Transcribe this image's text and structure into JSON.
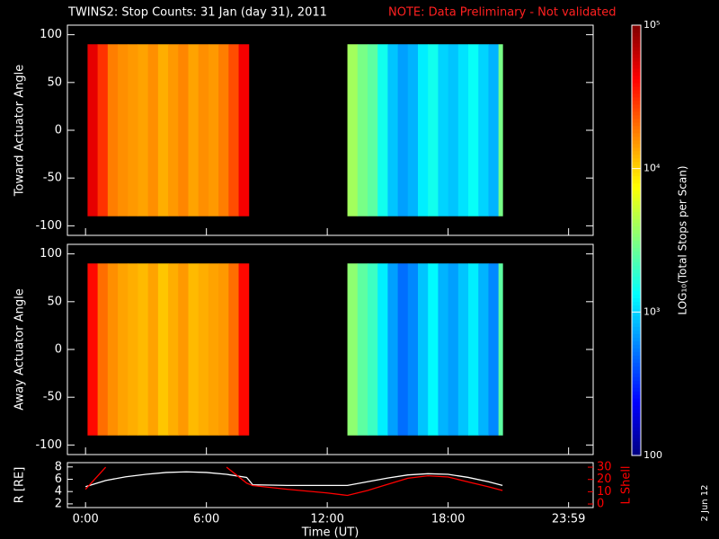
{
  "header": {
    "title": "TWINS2: Stop Counts: 31 Jan (day  31), 2011",
    "note": "NOTE: Data Preliminary - Not validated"
  },
  "footer_date": "2 Jun 12",
  "chart_data": [
    {
      "type": "heatmap",
      "y_label": "Toward Actuator Angle",
      "xlim": [
        -0.9,
        25.2
      ],
      "ylim": [
        -110,
        110
      ],
      "yticks": [
        -100,
        -50,
        0,
        50,
        100
      ],
      "angle_range": [
        -90,
        90
      ],
      "blocks": [
        {
          "bins": [
            0.1,
            0.6,
            1.1,
            1.6,
            2.1,
            2.6,
            3.1,
            3.6,
            4.1,
            4.6,
            5.1,
            5.6,
            6.1,
            6.6,
            7.1,
            7.6,
            8.1
          ],
          "values": [
            50000,
            30000,
            18000,
            16000,
            15000,
            14000,
            16000,
            13000,
            15000,
            17000,
            14000,
            16000,
            15000,
            18000,
            25000,
            45000
          ]
        },
        {
          "bins": [
            13.0,
            13.5,
            14.0,
            14.5,
            15.0,
            15.5,
            16.0,
            16.5,
            17.0,
            17.5,
            18.0,
            18.5,
            19.0,
            19.5,
            20.0,
            20.5,
            20.7
          ],
          "values": [
            4000,
            3000,
            2500,
            1500,
            900,
            700,
            800,
            1200,
            1500,
            1000,
            900,
            1100,
            1400,
            1000,
            800,
            3000
          ]
        }
      ],
      "colorbar": {
        "label": "LOG₁₀(Total Stops per Scan)",
        "scale": "log",
        "lim": [
          100,
          100000
        ],
        "ticks": [
          {
            "value": 100000,
            "label": "10⁵"
          },
          {
            "value": 10000,
            "label": "10⁴"
          },
          {
            "value": 1000,
            "label": "10³"
          },
          100
        ]
      }
    },
    {
      "type": "heatmap",
      "y_label": "Away Actuator Angle",
      "xlim": [
        -0.9,
        25.2
      ],
      "ylim": [
        -110,
        110
      ],
      "yticks": [
        -100,
        -50,
        0,
        50,
        100
      ],
      "angle_range": [
        -90,
        90
      ],
      "blocks": [
        {
          "bins": [
            0.1,
            0.6,
            1.1,
            1.6,
            2.1,
            2.6,
            3.1,
            3.6,
            4.1,
            4.6,
            5.1,
            5.6,
            6.1,
            6.6,
            7.1,
            7.6,
            8.1
          ],
          "values": [
            40000,
            20000,
            16000,
            14000,
            13000,
            12000,
            14000,
            11000,
            13000,
            15000,
            12000,
            13000,
            14000,
            15000,
            20000,
            40000
          ]
        },
        {
          "bins": [
            13.0,
            13.5,
            14.0,
            14.5,
            15.0,
            15.5,
            16.0,
            16.5,
            17.0,
            17.5,
            18.0,
            18.5,
            19.0,
            19.5,
            20.0,
            20.5,
            20.7
          ],
          "values": [
            3500,
            2500,
            2000,
            1200,
            700,
            500,
            600,
            900,
            1300,
            800,
            700,
            900,
            1200,
            800,
            600,
            2500
          ]
        }
      ]
    },
    {
      "type": "line",
      "x_label": "Time (UT)",
      "y_label": "R [RE]",
      "y2_label": "L Shell",
      "xlim": [
        -0.9,
        25.2
      ],
      "ylim": [
        1.4,
        8.7
      ],
      "y2lim": [
        -2.9,
        33.7
      ],
      "xticks": [
        {
          "value": 0,
          "label": "0:00"
        },
        {
          "value": 6,
          "label": "6:00"
        },
        {
          "value": 12,
          "label": "12:00"
        },
        {
          "value": 18,
          "label": "18:00"
        },
        {
          "value": 23.98,
          "label": "23:59"
        }
      ],
      "yticks": [
        2,
        4,
        6,
        8
      ],
      "y2ticks": [
        0,
        10,
        20,
        30
      ],
      "x": [
        0,
        1,
        2,
        3,
        4,
        5,
        6,
        7,
        8,
        8.3,
        10,
        12,
        13,
        14,
        15,
        16,
        17,
        18,
        19,
        20,
        20.7
      ],
      "series": [
        {
          "color": "#ffffff",
          "values": [
            4.8,
            5.8,
            6.4,
            6.8,
            7.1,
            7.2,
            7.1,
            6.8,
            6.3,
            5.1,
            5.0,
            5.0,
            5.0,
            5.6,
            6.2,
            6.7,
            6.9,
            6.8,
            6.3,
            5.6,
            5.0
          ]
        },
        {
          "color": "#ff0000",
          "axis": "y2",
          "values": [
            12,
            30,
            null,
            null,
            null,
            null,
            null,
            30,
            17,
            15,
            12,
            9,
            7,
            11,
            16,
            21,
            23,
            22,
            18,
            14,
            11
          ]
        }
      ]
    }
  ]
}
